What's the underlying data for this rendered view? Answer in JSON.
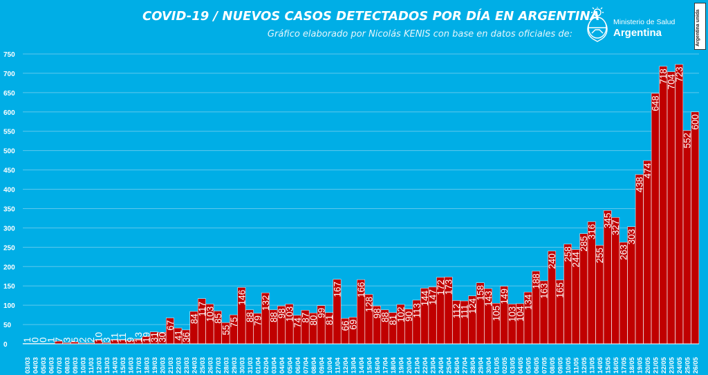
{
  "title": "COVID-19  /  NUEVOS CASOS DETECTADOS POR DÍA EN ARGENTINA",
  "subtitle": "Gráfico elaborado por Nicolás KENIS con base en datos oficiales de:",
  "logo": {
    "ministry": "Ministerio de Salud",
    "country": "Argentina",
    "badge": "Argentina unida"
  },
  "colors": {
    "background": "#00aee6",
    "bar": "#c00000",
    "bar_edge": "#ffffff",
    "text": "#ffffff"
  },
  "chart_data": {
    "type": "bar",
    "title": "COVID-19  /  NUEVOS CASOS DETECTADOS POR DÍA EN ARGENTINA",
    "xlabel": "",
    "ylabel": "",
    "ylim": [
      0,
      750
    ],
    "yticks": [
      0,
      50,
      100,
      150,
      200,
      250,
      300,
      350,
      400,
      450,
      500,
      550,
      600,
      650,
      700,
      750
    ],
    "grid": true,
    "legend": "none",
    "data_labels": "rotated inside bars",
    "categories": [
      "03/03",
      "04/03",
      "05/03",
      "06/03",
      "07/03",
      "08/03",
      "09/03",
      "10/03",
      "11/03",
      "12/03",
      "13/03",
      "14/03",
      "15/03",
      "16/03",
      "17/03",
      "18/03",
      "19/03",
      "20/03",
      "21/03",
      "22/03",
      "23/03",
      "24/03",
      "25/03",
      "26/03",
      "27/03",
      "28/03",
      "29/03",
      "30/03",
      "31/03",
      "01/04",
      "02/04",
      "03/04",
      "04/04",
      "05/04",
      "06/04",
      "07/04",
      "08/04",
      "09/04",
      "10/04",
      "11/04",
      "12/04",
      "13/04",
      "14/04",
      "15/04",
      "16/04",
      "17/04",
      "18/04",
      "19/04",
      "20/04",
      "21/04",
      "22/04",
      "23/04",
      "24/04",
      "25/04",
      "26/04",
      "27/04",
      "28/04",
      "29/04",
      "30/04",
      "01/05",
      "02/05",
      "03/05",
      "04/05",
      "05/05",
      "06/05",
      "07/05",
      "08/05",
      "09/05",
      "10/05",
      "11/05",
      "12/05",
      "13/05",
      "14/05",
      "15/05",
      "16/05",
      "17/05",
      "18/05",
      "19/05",
      "20/05",
      "21/05",
      "22/05",
      "23/05",
      "24/05",
      "25/05",
      "26/05"
    ],
    "xticklabels": [
      "03/03",
      "04/03",
      "05/03",
      "06/03",
      "07/03",
      "08/03",
      "09/03",
      "10/03",
      "11/03",
      "12/03",
      "13/03",
      "14/03",
      "15/03",
      "16/03",
      "17/03",
      "18/03",
      "19/03",
      "20/03",
      "21/03",
      "22/03",
      "23/03",
      "24/03",
      "25/03",
      "26/03",
      "27/03",
      "28/03",
      "29/03",
      "30/03",
      "31/03",
      "01/04",
      "02/04",
      "03/04",
      "04/04",
      "05/04",
      "06/04",
      "07/04",
      "08/04",
      "09/04",
      "10/04",
      "11/04",
      "12/04",
      "13/04",
      "14/04",
      "15/04",
      "16/04",
      "17/04",
      "18/04",
      "19/04",
      "20/04",
      "21/04",
      "22/04",
      "23/04",
      "24/04",
      "25/04",
      "26/04",
      "27/04",
      "28/04",
      "29/04",
      "30/04",
      "01/05",
      "02/05",
      "03/05",
      "04/05",
      "05/05",
      "06/05",
      "07/05",
      "08/05",
      "09/05",
      "10/05",
      "11/05",
      "12/05",
      "13/05",
      "14/05",
      "15/05",
      "16/05",
      "17/05",
      "18/05",
      "19/05",
      "20/05",
      "21/05",
      "22/05",
      "23/05",
      "24/05",
      "25/05",
      "26/05"
    ],
    "values": [
      1,
      0,
      0,
      1,
      7,
      3,
      5,
      2,
      2,
      10,
      3,
      11,
      11,
      9,
      13,
      19,
      31,
      30,
      67,
      41,
      36,
      84,
      117,
      103,
      85,
      55,
      75,
      146,
      88,
      79,
      132,
      88,
      98,
      103,
      74,
      87,
      80,
      99,
      81,
      167,
      66,
      69,
      166,
      128,
      98,
      88,
      81,
      102,
      90,
      113,
      144,
      147,
      172,
      173,
      112,
      111,
      124,
      158,
      143,
      105,
      149,
      103,
      104,
      134,
      188,
      163,
      240,
      165,
      258,
      244,
      285,
      316,
      255,
      345,
      327,
      263,
      303,
      438,
      474,
      648,
      718,
      704,
      723,
      552,
      600
    ],
    "labels": [
      "1",
      "0",
      "0",
      "1",
      "7",
      "3",
      "5",
      "2",
      "2",
      "10",
      "3",
      "11",
      "11",
      "9",
      "13",
      "19",
      "31",
      "30",
      "67",
      "41",
      "36",
      "84",
      "117",
      "103",
      "85",
      "55",
      "75",
      "146",
      "88",
      "79",
      "132",
      "88",
      "98",
      "103",
      "74",
      "87",
      "80",
      "99",
      "81",
      "167",
      "66",
      "69",
      "166",
      "128",
      "98",
      "88",
      "81",
      "102",
      "90",
      "113",
      "144",
      "147",
      "172",
      "173",
      "112",
      "111",
      "124",
      "158",
      "143",
      "105",
      "149",
      "103",
      "104",
      "134",
      "188",
      "163",
      "240",
      "165",
      "258",
      "244",
      "285",
      "316",
      "255",
      "345",
      "327",
      "263",
      "303",
      "438",
      "474",
      "648",
      "718",
      "704",
      "723",
      "552",
      "600"
    ]
  }
}
